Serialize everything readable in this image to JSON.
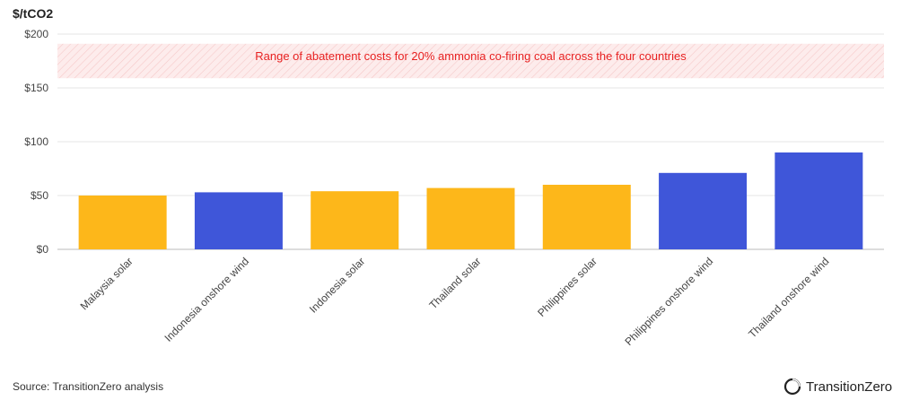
{
  "chart_data": {
    "type": "bar",
    "ylabel": "$/tCO2",
    "ylim": [
      0,
      200
    ],
    "yticks": [
      0,
      50,
      100,
      150,
      200
    ],
    "ytick_labels": [
      "$0",
      "$50",
      "$100",
      "$150",
      "$200"
    ],
    "categories": [
      "Malaysia solar",
      "Indonesia onshore wind",
      "Indonesia solar",
      "Thailand solar",
      "Philippines solar",
      "Philippines onshore wind",
      "Thailand onshore wind"
    ],
    "values": [
      50,
      53,
      54,
      57,
      60,
      71,
      90
    ],
    "technology": [
      "solar",
      "wind",
      "solar",
      "solar",
      "solar",
      "wind",
      "wind"
    ],
    "colors": {
      "solar": "#FDB71A",
      "wind": "#3F56D9"
    },
    "band": {
      "y_range": [
        159,
        191
      ],
      "label": "Range of abatement costs for 20% ammonia co-firing coal across the four countries",
      "color": "#E82222"
    },
    "grid": true
  },
  "footer": {
    "source": "Source: TransitionZero analysis",
    "brand": "TransitionZero"
  }
}
